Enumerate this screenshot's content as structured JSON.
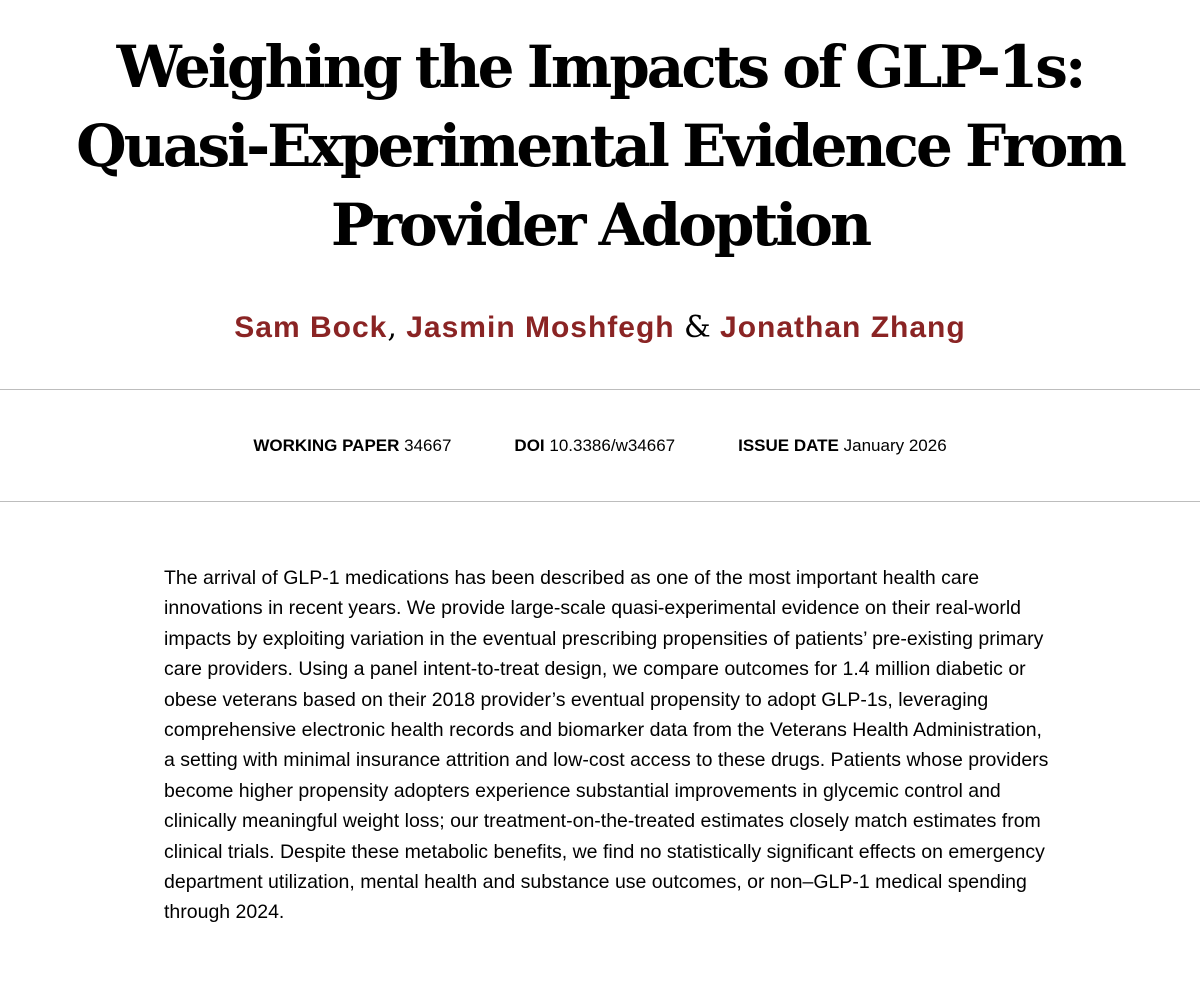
{
  "paper": {
    "title": "Weighing the Impacts of GLP-1s: Quasi-Experimental Evidence From Provider Adoption",
    "authors": [
      {
        "name": "Sam Bock"
      },
      {
        "name": "Jasmin Moshfegh"
      },
      {
        "name": "Jonathan Zhang"
      }
    ],
    "author_separators": [
      ",",
      "&"
    ],
    "author_color": "#8a2424"
  },
  "meta": {
    "working_paper_label": "WORKING PAPER",
    "working_paper_value": "34667",
    "doi_label": "DOI",
    "doi_value": "10.3386/w34667",
    "issue_date_label": "ISSUE DATE",
    "issue_date_value": "January 2026"
  },
  "abstract": {
    "text": "The arrival of GLP-1 medications has been described as one of the most important health care innovations in recent years. We provide large-scale quasi-experimental evidence on their real-world impacts by exploiting variation in the eventual prescribing propensities of patients’ pre-existing primary care providers. Using a panel intent-to-treat design, we compare outcomes for 1.4 million diabetic or obese veterans based on their 2018 provider’s eventual propensity to adopt GLP-1s, leveraging comprehensive electronic health records and biomarker data from the Veterans Health Administration, a setting with minimal insurance attrition and low-cost access to these drugs. Patients whose providers become higher propensity adopters experience substantial improvements in glycemic control and clinically meaningful weight loss; our treatment-on-the-treated estimates closely match estimates from clinical trials. Despite these metabolic benefits, we find no statistically significant effects on emergency department utilization, mental health and substance use outcomes, or non–GLP-1 medical spending through 2024."
  }
}
